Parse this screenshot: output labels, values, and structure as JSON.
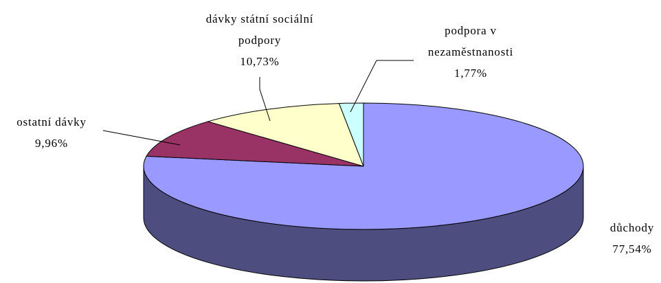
{
  "chart_data": {
    "type": "pie3d",
    "categories": [
      "důchody",
      "ostatní dávky",
      "dávky státní sociální podpory",
      "podpora v nezaměstnanosti"
    ],
    "values": [
      77.54,
      9.96,
      10.73,
      1.77
    ],
    "value_labels": [
      "77,54%",
      "9,96%",
      "10,73%",
      "1,77%"
    ],
    "colors": [
      "#9999ff",
      "#993366",
      "#ffffcc",
      "#ccffff"
    ]
  }
}
